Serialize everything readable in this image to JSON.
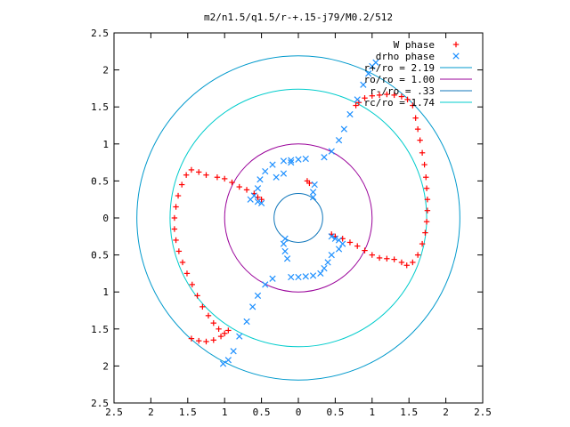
{
  "chart_data": {
    "type": "scatter",
    "title": "m2/n1.5/q1.5/r-+.15-j79/M0.2/512",
    "xlabel": "",
    "ylabel": "",
    "xlim": [
      -2.5,
      2.5
    ],
    "ylim": [
      -2.5,
      2.5
    ],
    "x_tick_labels": [
      "2.5",
      "2",
      "1.5",
      "1",
      "0.5",
      "0",
      "0.5",
      "1",
      "1.5",
      "2",
      "2.5"
    ],
    "y_tick_labels": [
      "2.5",
      "2",
      "1.5",
      "1",
      "0.5",
      "0",
      "0.5",
      "1",
      "1.5",
      "2",
      "2.5"
    ],
    "grid": false,
    "legend_position": "top-right",
    "series": [
      {
        "name": "W phase",
        "marker": "plus",
        "color": "#ff0000",
        "points": [
          [
            1.4,
            1.64
          ],
          [
            1.3,
            1.66
          ],
          [
            1.2,
            1.67
          ],
          [
            1.1,
            1.66
          ],
          [
            1.0,
            1.65
          ],
          [
            0.9,
            1.62
          ],
          [
            0.82,
            1.56
          ],
          [
            0.78,
            1.52
          ],
          [
            1.48,
            1.6
          ],
          [
            1.55,
            1.52
          ],
          [
            1.59,
            1.35
          ],
          [
            1.62,
            1.2
          ],
          [
            1.65,
            1.05
          ],
          [
            1.68,
            0.88
          ],
          [
            1.71,
            0.72
          ],
          [
            1.73,
            0.55
          ],
          [
            1.74,
            0.4
          ],
          [
            1.75,
            0.25
          ],
          [
            1.75,
            0.1
          ],
          [
            1.74,
            -0.05
          ],
          [
            1.72,
            -0.2
          ],
          [
            1.68,
            -0.35
          ],
          [
            1.62,
            -0.5
          ],
          [
            1.55,
            -0.6
          ],
          [
            1.47,
            -0.64
          ],
          [
            1.4,
            -0.6
          ],
          [
            1.3,
            -0.56
          ],
          [
            1.2,
            -0.55
          ],
          [
            1.1,
            -0.54
          ],
          [
            1.0,
            -0.5
          ],
          [
            0.9,
            -0.44
          ],
          [
            0.8,
            -0.38
          ],
          [
            0.7,
            -0.33
          ],
          [
            0.6,
            -0.28
          ],
          [
            0.5,
            -0.25
          ],
          [
            0.45,
            -0.22
          ],
          [
            -1.45,
            0.65
          ],
          [
            -1.35,
            0.62
          ],
          [
            -1.25,
            0.58
          ],
          [
            -1.1,
            0.55
          ],
          [
            -1.0,
            0.53
          ],
          [
            -0.9,
            0.48
          ],
          [
            -0.8,
            0.42
          ],
          [
            -0.7,
            0.38
          ],
          [
            -0.6,
            0.33
          ],
          [
            -0.55,
            0.28
          ],
          [
            -0.5,
            0.25
          ],
          [
            -1.52,
            0.58
          ],
          [
            -1.58,
            0.45
          ],
          [
            -1.63,
            0.3
          ],
          [
            -1.66,
            0.15
          ],
          [
            -1.68,
            0.0
          ],
          [
            -1.68,
            -0.15
          ],
          [
            -1.66,
            -0.3
          ],
          [
            -1.62,
            -0.45
          ],
          [
            -1.57,
            -0.6
          ],
          [
            -1.51,
            -0.75
          ],
          [
            -1.44,
            -0.9
          ],
          [
            -1.37,
            -1.05
          ],
          [
            -1.3,
            -1.2
          ],
          [
            -1.22,
            -1.32
          ],
          [
            -1.15,
            -1.42
          ],
          [
            -1.08,
            -1.5
          ],
          [
            -1.0,
            -1.56
          ],
          [
            -0.95,
            -1.52
          ],
          [
            -1.05,
            -1.6
          ],
          [
            -1.15,
            -1.65
          ],
          [
            -1.25,
            -1.67
          ],
          [
            -1.35,
            -1.66
          ],
          [
            -1.45,
            -1.63
          ],
          [
            0.15,
            0.47
          ],
          [
            0.12,
            0.5
          ]
        ]
      },
      {
        "name": "drho phase",
        "marker": "cross",
        "color": "#1e90ff",
        "points": [
          [
            0.35,
            0.82
          ],
          [
            0.45,
            0.9
          ],
          [
            0.55,
            1.05
          ],
          [
            0.62,
            1.2
          ],
          [
            0.7,
            1.4
          ],
          [
            0.8,
            1.6
          ],
          [
            0.88,
            1.8
          ],
          [
            0.95,
            1.95
          ],
          [
            1.0,
            2.05
          ],
          [
            1.05,
            2.1
          ],
          [
            0.1,
            0.8
          ],
          [
            0.0,
            0.79
          ],
          [
            -0.1,
            0.78
          ],
          [
            -0.2,
            0.77
          ],
          [
            -0.35,
            0.72
          ],
          [
            -0.45,
            0.63
          ],
          [
            -0.52,
            0.52
          ],
          [
            -0.55,
            0.4
          ],
          [
            -0.6,
            0.3
          ],
          [
            -0.65,
            0.25
          ],
          [
            -0.55,
            0.22
          ],
          [
            -0.5,
            0.2
          ],
          [
            -0.35,
            -0.82
          ],
          [
            -0.45,
            -0.9
          ],
          [
            -0.55,
            -1.05
          ],
          [
            -0.62,
            -1.2
          ],
          [
            -0.7,
            -1.4
          ],
          [
            -0.8,
            -1.6
          ],
          [
            -0.88,
            -1.8
          ],
          [
            -0.95,
            -1.92
          ],
          [
            -1.02,
            -1.97
          ],
          [
            -0.1,
            -0.8
          ],
          [
            0.0,
            -0.8
          ],
          [
            0.1,
            -0.79
          ],
          [
            0.2,
            -0.78
          ],
          [
            0.3,
            -0.75
          ],
          [
            0.35,
            -0.68
          ],
          [
            0.4,
            -0.6
          ],
          [
            0.45,
            -0.5
          ],
          [
            0.55,
            -0.42
          ],
          [
            0.6,
            -0.35
          ],
          [
            0.55,
            -0.3
          ],
          [
            0.5,
            -0.28
          ],
          [
            0.45,
            -0.25
          ],
          [
            -0.15,
            -0.55
          ],
          [
            -0.18,
            -0.45
          ],
          [
            -0.2,
            -0.35
          ],
          [
            -0.18,
            -0.28
          ],
          [
            0.2,
            0.28
          ],
          [
            0.2,
            0.35
          ],
          [
            0.22,
            0.45
          ],
          [
            -0.3,
            0.55
          ],
          [
            -0.2,
            0.6
          ],
          [
            -0.1,
            0.75
          ]
        ]
      }
    ],
    "circles": [
      {
        "name": "r+/ro = 2.19",
        "radius": 2.19,
        "color": "#0099cc"
      },
      {
        "name": "ro/ro = 1.00",
        "radius": 1.0,
        "color": "#990099"
      },
      {
        "name": "r-/ro = .33",
        "radius": 0.33,
        "color": "#1177bb"
      },
      {
        "name": "rc/ro = 1.74",
        "radius": 1.74,
        "color": "#00cccc"
      }
    ]
  }
}
